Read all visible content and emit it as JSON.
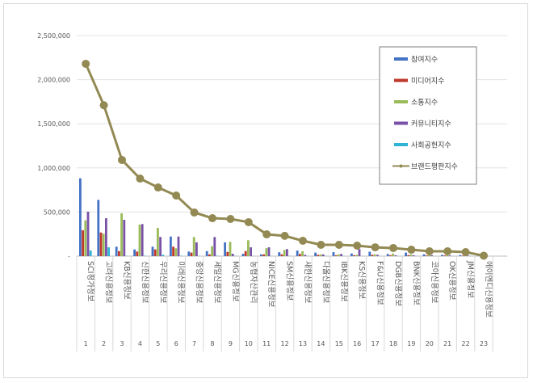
{
  "chart_data": {
    "type": "bar",
    "title": "",
    "xlabel": "",
    "ylabel": "",
    "ylim": [
      0,
      2500000
    ],
    "yticks": [
      "-",
      "500,000",
      "1,000,000",
      "1,500,000",
      "2,000,000",
      "2,500,000"
    ],
    "grid": true,
    "legend_placement": "top-right",
    "categories": [
      "SCI평가정보",
      "고려신용정보",
      "KB신용정보",
      "신한신용정보",
      "우리신용정보",
      "미래신용정보",
      "중앙신용정보",
      "세일신용정보",
      "MG신용정보",
      "농협자산관리",
      "NICE신용정보",
      "SM신용정보",
      "새한신용정보",
      "다올신용정보",
      "IBK신용정보",
      "KS신용정보",
      "F&U신용정보",
      "DGB신용정보",
      "BNK신용정보",
      "코아신용정보",
      "OK신용정보",
      "JM신용정보",
      "에이엔디신용정보"
    ],
    "numbers": [
      "1",
      "2",
      "3",
      "4",
      "5",
      "6",
      "7",
      "8",
      "9",
      "10",
      "11",
      "12",
      "13",
      "14",
      "15",
      "16",
      "17",
      "18",
      "19",
      "20",
      "21",
      "22",
      "23"
    ],
    "series": [
      {
        "name": "참여지수",
        "type": "bar",
        "color": "#4472c4",
        "values": [
          882000,
          638000,
          107000,
          76000,
          107000,
          222000,
          52000,
          57000,
          156000,
          27000,
          20000,
          44000,
          63000,
          40000,
          45000,
          30000,
          50000,
          25000,
          40000,
          20000,
          15000,
          12000,
          3000
        ]
      },
      {
        "name": "미디어지수",
        "type": "bar",
        "color": "#c0392b",
        "values": [
          293000,
          268000,
          57000,
          52000,
          76000,
          107000,
          40000,
          20000,
          48000,
          58000,
          20000,
          20000,
          25000,
          15000,
          10000,
          10000,
          15000,
          10000,
          12000,
          8000,
          8000,
          6000,
          1000
        ]
      },
      {
        "name": "소통지수",
        "type": "bar",
        "color": "#9bbb59",
        "values": [
          406000,
          254000,
          485000,
          357000,
          320000,
          89000,
          217000,
          113000,
          162000,
          180000,
          90000,
          70000,
          55000,
          20000,
          20000,
          15000,
          20000,
          30000,
          20000,
          20000,
          15000,
          10000,
          1000
        ]
      },
      {
        "name": "커뮤니티지수",
        "type": "bar",
        "color": "#7952a8",
        "values": [
          504000,
          430000,
          412000,
          364000,
          217000,
          222000,
          156000,
          217000,
          27000,
          100000,
          100000,
          80000,
          15000,
          20000,
          25000,
          80000,
          15000,
          10000,
          10000,
          10000,
          8000,
          6000,
          1000
        ]
      },
      {
        "name": "사회공헌지수",
        "type": "bar",
        "color": "#2fb4d3",
        "values": [
          64000,
          100000,
          3000,
          5000,
          15000,
          5000,
          2000,
          5000,
          3000,
          2000,
          2000,
          2000,
          2000,
          2000,
          2000,
          2000,
          2000,
          2000,
          2000,
          2000,
          2000,
          2000,
          500
        ]
      },
      {
        "name": "브랜드평판지수",
        "type": "line",
        "color": "#938953",
        "values": [
          2180000,
          1710000,
          1090000,
          879000,
          778000,
          687000,
          495000,
          430000,
          421000,
          385000,
          247000,
          230000,
          174000,
          128000,
          128000,
          119000,
          100000,
          92000,
          73000,
          55000,
          55000,
          46000,
          5000
        ]
      }
    ]
  }
}
